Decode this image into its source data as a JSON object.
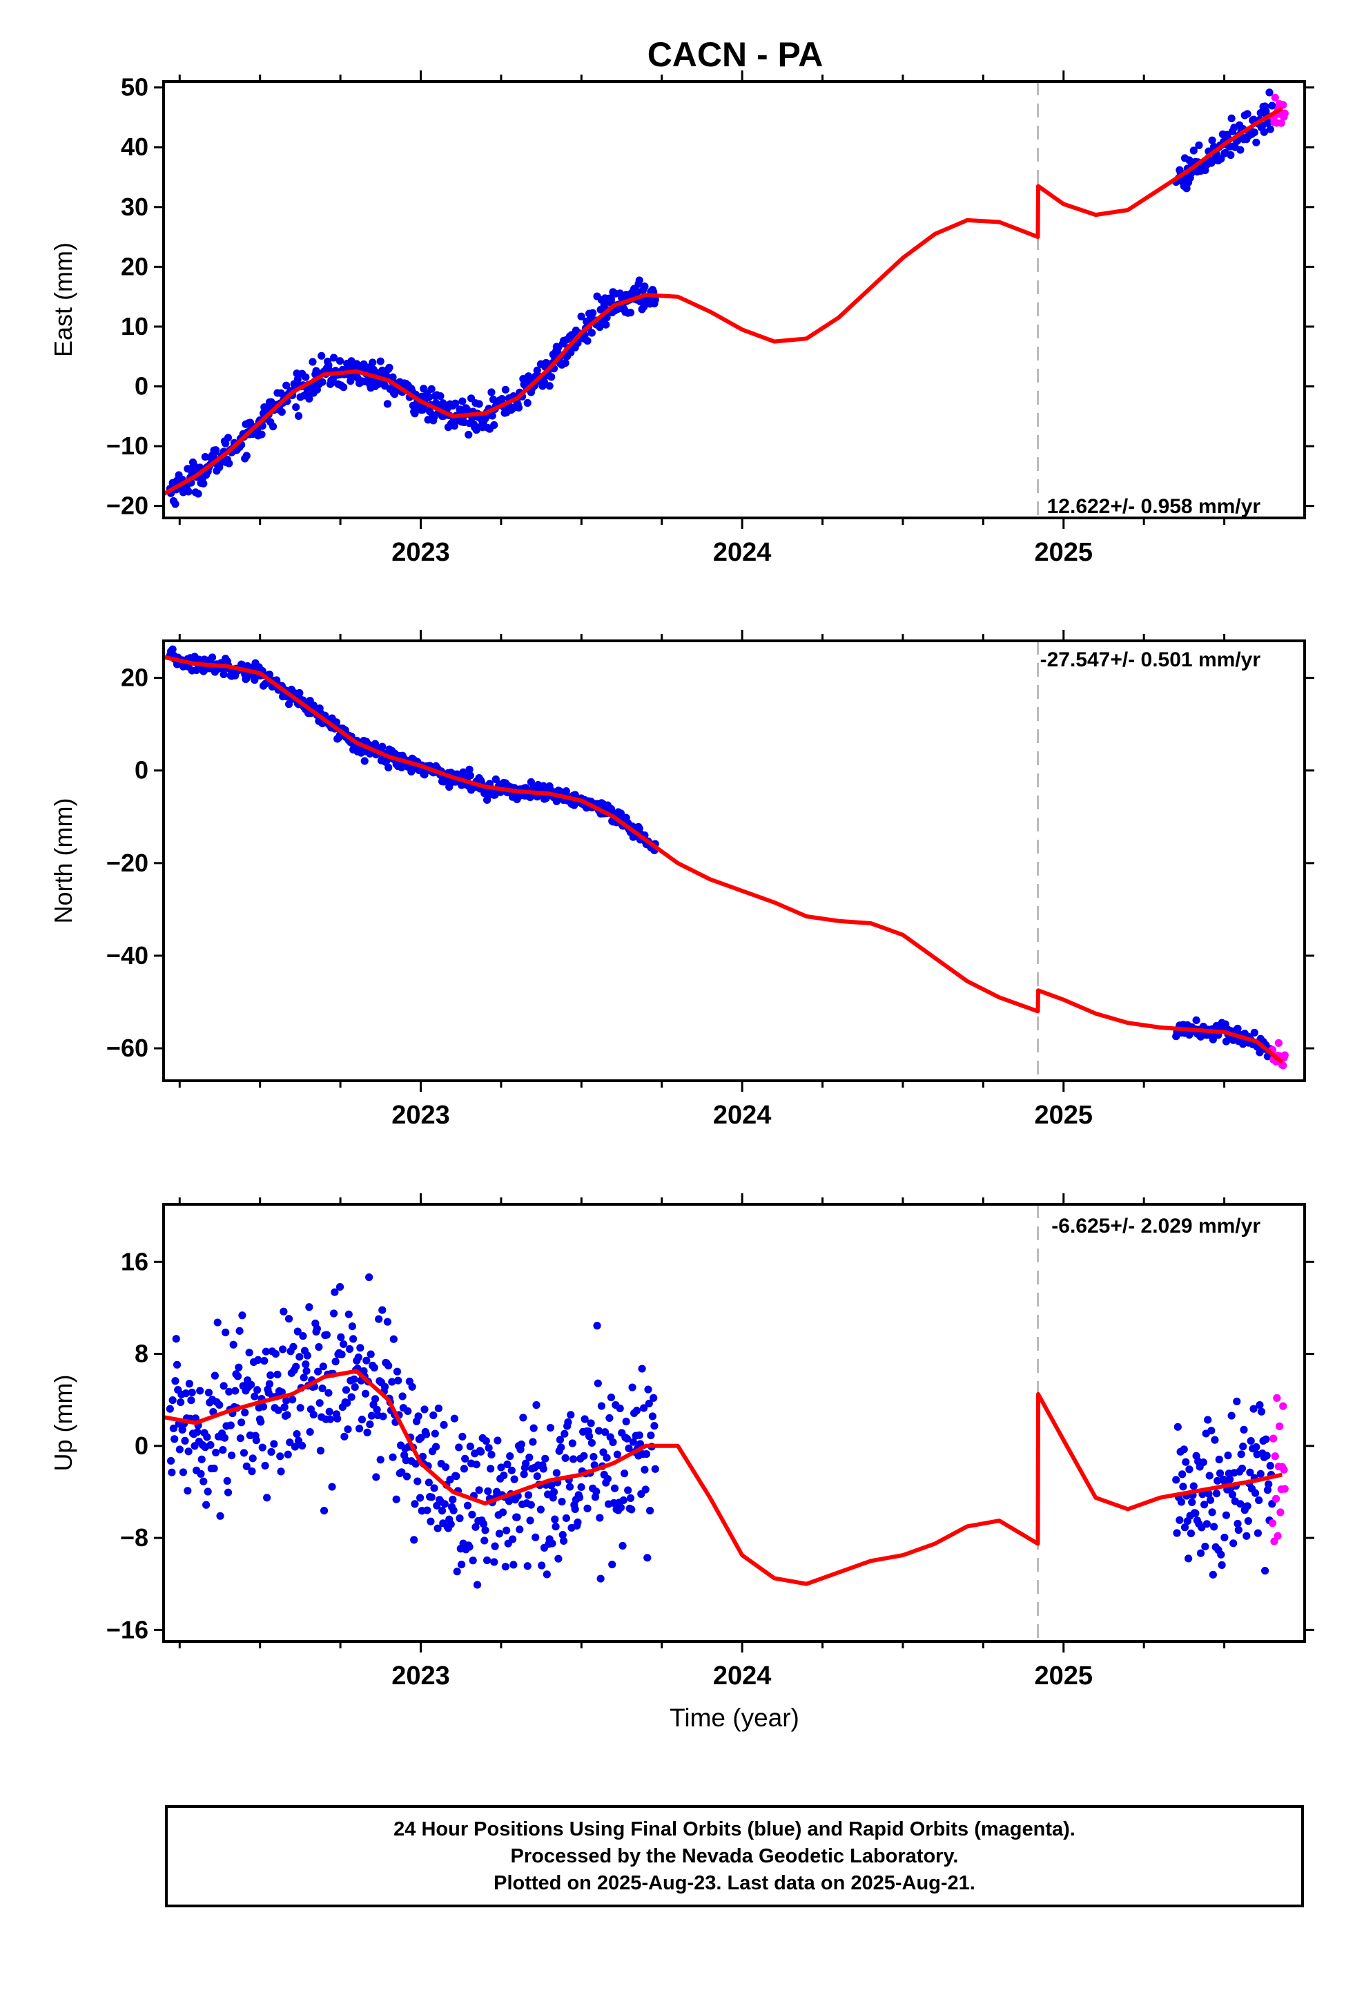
{
  "title": "CACN - PA",
  "x_label": "Time (year)",
  "footer": {
    "line1": "24 Hour Positions Using Final Orbits (blue) and Rapid Orbits (magenta).",
    "line2": "Processed by the Nevada Geodetic Laboratory.",
    "line3": "Plotted on 2025-Aug-23. Last data on 2025-Aug-21."
  },
  "colors": {
    "final": "#0000ee",
    "rapid": "#ff00ff",
    "model": "#ff0000",
    "break_line": "#bbbbbb"
  },
  "chart_data": [
    {
      "type": "scatter",
      "component": "east",
      "ylabel": "East (mm)",
      "xlim": [
        2022.2,
        2025.75
      ],
      "ylim": [
        -22,
        51
      ],
      "yticks": [
        -20,
        -10,
        0,
        10,
        20,
        30,
        40,
        50
      ],
      "xticks": [
        2023,
        2024,
        2025
      ],
      "rate_label": "12.622+/- 0.958 mm/yr",
      "equipment_change": 2024.92,
      "final_windows": [
        [
          2022.22,
          2023.73
        ],
        [
          2025.35,
          2025.65
        ]
      ],
      "rapid_window": [
        2025.65,
        2025.69
      ],
      "noise_mm": 1.3,
      "model": {
        "x": [
          2022.2,
          2022.3,
          2022.4,
          2022.5,
          2022.6,
          2022.7,
          2022.8,
          2022.9,
          2023.0,
          2023.1,
          2023.2,
          2023.3,
          2023.4,
          2023.5,
          2023.6,
          2023.7,
          2023.8,
          2023.9,
          2024.0,
          2024.1,
          2024.2,
          2024.3,
          2024.4,
          2024.5,
          2024.6,
          2024.7,
          2024.8,
          2024.92,
          2024.921,
          2025.0,
          2025.1,
          2025.2,
          2025.3,
          2025.4,
          2025.5,
          2025.6,
          2025.68
        ],
        "y": [
          -18,
          -15,
          -11,
          -6,
          -1,
          2,
          2.5,
          1,
          -2.5,
          -5,
          -4.5,
          -2,
          3,
          9,
          13.5,
          15.3,
          15,
          12.5,
          9.5,
          7.5,
          8,
          11.5,
          16.5,
          21.5,
          25.5,
          27.8,
          27.5,
          25,
          33.5,
          30.5,
          28.7,
          29.5,
          33,
          36.5,
          40.5,
          44,
          46.5
        ]
      }
    },
    {
      "type": "scatter",
      "component": "north",
      "ylabel": "North (mm)",
      "xlim": [
        2022.2,
        2025.75
      ],
      "ylim": [
        -67,
        28
      ],
      "yticks": [
        -60,
        -40,
        -20,
        0,
        20
      ],
      "xticks": [
        2023,
        2024,
        2025
      ],
      "rate_label": "-27.547+/- 0.501 mm/yr",
      "equipment_change": 2024.92,
      "final_windows": [
        [
          2022.22,
          2023.73
        ],
        [
          2025.35,
          2025.65
        ]
      ],
      "rapid_window": [
        2025.65,
        2025.69
      ],
      "noise_mm": 0.9,
      "model": {
        "x": [
          2022.2,
          2022.3,
          2022.4,
          2022.5,
          2022.6,
          2022.7,
          2022.8,
          2022.9,
          2023.0,
          2023.1,
          2023.2,
          2023.3,
          2023.4,
          2023.5,
          2023.6,
          2023.7,
          2023.8,
          2023.9,
          2024.0,
          2024.1,
          2024.2,
          2024.3,
          2024.4,
          2024.5,
          2024.6,
          2024.7,
          2024.8,
          2024.92,
          2024.921,
          2025.0,
          2025.1,
          2025.2,
          2025.3,
          2025.4,
          2025.5,
          2025.6,
          2025.68
        ],
        "y": [
          24.5,
          23,
          22.5,
          21,
          16,
          11,
          6,
          3,
          1,
          -1.5,
          -3.5,
          -4.5,
          -5,
          -6.5,
          -10,
          -15,
          -20,
          -23.5,
          -26,
          -28.5,
          -31.5,
          -32.5,
          -33,
          -35.5,
          -40.5,
          -45.5,
          -49,
          -52,
          -47.5,
          -49.5,
          -52.5,
          -54.5,
          -55.5,
          -56,
          -56.5,
          -58.5,
          -63
        ]
      }
    },
    {
      "type": "scatter",
      "component": "up",
      "ylabel": "Up (mm)",
      "xlim": [
        2022.2,
        2025.75
      ],
      "ylim": [
        -17,
        21
      ],
      "yticks": [
        -16,
        -8,
        0,
        8,
        16
      ],
      "xticks": [
        2023,
        2024,
        2025
      ],
      "rate_label": "-6.625+/- 2.029 mm/yr",
      "equipment_change": 2024.92,
      "final_windows": [
        [
          2022.22,
          2023.73
        ],
        [
          2025.35,
          2025.65
        ]
      ],
      "rapid_window": [
        2025.65,
        2025.69
      ],
      "noise_mm": 3.6,
      "model": {
        "x": [
          2022.2,
          2022.3,
          2022.4,
          2022.5,
          2022.6,
          2022.7,
          2022.8,
          2022.9,
          2023.0,
          2023.1,
          2023.2,
          2023.3,
          2023.4,
          2023.5,
          2023.6,
          2023.7,
          2023.8,
          2023.9,
          2024.0,
          2024.1,
          2024.2,
          2024.3,
          2024.4,
          2024.5,
          2024.6,
          2024.7,
          2024.8,
          2024.92,
          2024.921,
          2025.0,
          2025.1,
          2025.2,
          2025.3,
          2025.4,
          2025.5,
          2025.6,
          2025.68
        ],
        "y": [
          2.5,
          2,
          3,
          3.8,
          4.5,
          6,
          6.5,
          4,
          -1.5,
          -4,
          -5,
          -4,
          -3,
          -2.5,
          -1.5,
          0,
          0,
          -4.5,
          -9.5,
          -11.5,
          -12,
          -11,
          -10,
          -9.5,
          -8.5,
          -7,
          -6.5,
          -8.5,
          4.5,
          0.5,
          -4.5,
          -5.5,
          -4.5,
          -4,
          -3.5,
          -3,
          -2.5
        ]
      }
    }
  ]
}
